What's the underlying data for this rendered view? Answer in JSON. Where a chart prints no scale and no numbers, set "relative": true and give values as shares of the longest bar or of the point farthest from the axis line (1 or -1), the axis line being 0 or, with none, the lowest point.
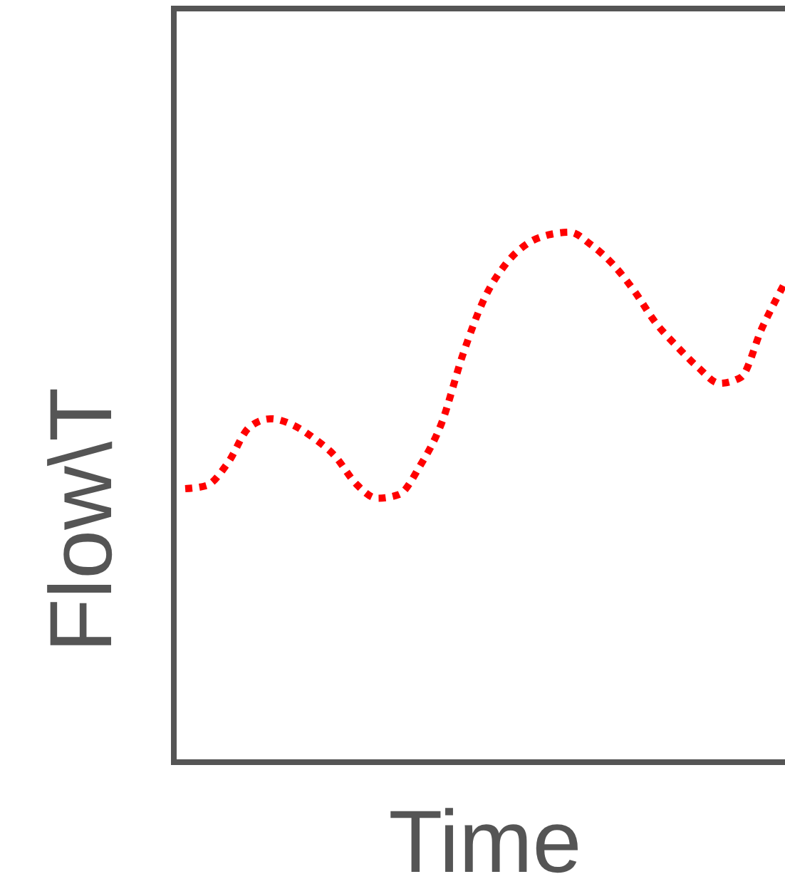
{
  "chart_data": {
    "type": "line",
    "xlabel": "Time",
    "ylabel": "Flow\\T",
    "relative": true,
    "line_style": "dotted",
    "categories": [
      null,
      null,
      null,
      null,
      null,
      null,
      null,
      null,
      null,
      null,
      null,
      null,
      null,
      null,
      null,
      null,
      null,
      null,
      null,
      null,
      null,
      null,
      null,
      null,
      null,
      null,
      null,
      null,
      null
    ],
    "series": [
      {
        "color": "#ff0000",
        "values": [
          0.516,
          0.522,
          0.565,
          0.632,
          0.648,
          0.637,
          0.612,
          0.578,
          0.525,
          0.498,
          0.505,
          0.56,
          0.64,
          0.77,
          0.875,
          0.94,
          0.978,
          0.995,
          1,
          0.976,
          0.94,
          0.89,
          0.83,
          0.785,
          0.745,
          0.715,
          0.726,
          0.82,
          0.9
        ]
      }
    ]
  }
}
